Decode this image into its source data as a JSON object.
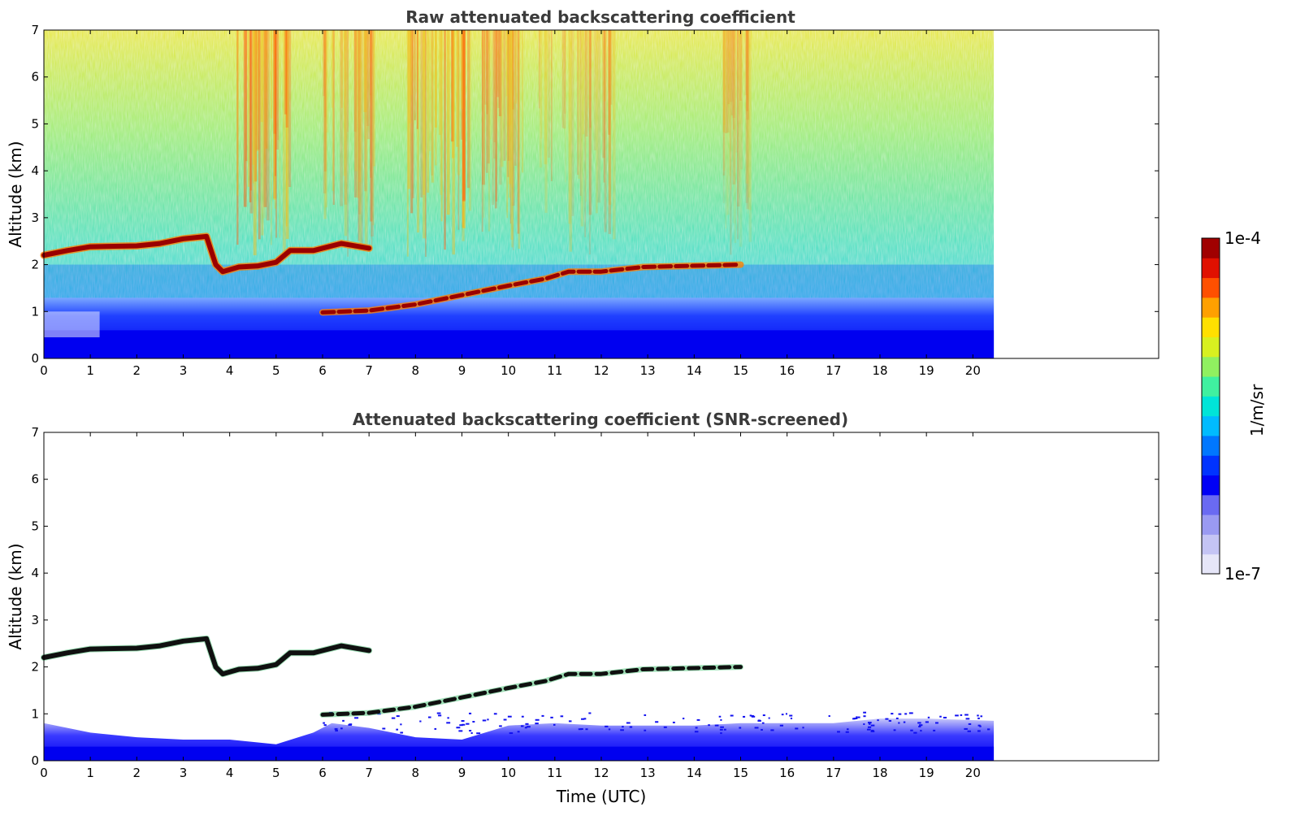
{
  "chart_data": [
    {
      "type": "heatmap",
      "title": "Raw attenuated backscattering coefficient",
      "xlabel": "",
      "ylabel": "Altitude (km)",
      "xlim": [
        0,
        24
      ],
      "ylim": [
        0,
        7
      ],
      "x_ticks": [
        0,
        1,
        2,
        3,
        4,
        5,
        6,
        7,
        8,
        9,
        10,
        11,
        12,
        13,
        14,
        15,
        16,
        17,
        18,
        19,
        20
      ],
      "y_ticks": [
        0,
        1,
        2,
        3,
        4,
        5,
        6,
        7
      ],
      "data_extent_x": [
        0,
        20.45
      ],
      "grid": false,
      "features": {
        "cloud_layer": [
          {
            "x": 0.0,
            "y": 2.2
          },
          {
            "x": 0.5,
            "y": 2.3
          },
          {
            "x": 1.0,
            "y": 2.38
          },
          {
            "x": 2.0,
            "y": 2.4
          },
          {
            "x": 2.5,
            "y": 2.45
          },
          {
            "x": 3.0,
            "y": 2.55
          },
          {
            "x": 3.5,
            "y": 2.6
          },
          {
            "x": 3.7,
            "y": 2.0
          },
          {
            "x": 3.85,
            "y": 1.85
          },
          {
            "x": 4.2,
            "y": 1.95
          },
          {
            "x": 4.6,
            "y": 1.97
          },
          {
            "x": 5.0,
            "y": 2.05
          },
          {
            "x": 5.3,
            "y": 2.3
          },
          {
            "x": 5.8,
            "y": 2.3
          },
          {
            "x": 6.4,
            "y": 2.45
          },
          {
            "x": 7.0,
            "y": 2.35
          }
        ],
        "lower_layer": [
          {
            "x": 6.0,
            "y": 0.98
          },
          {
            "x": 7.0,
            "y": 1.02
          },
          {
            "x": 8.0,
            "y": 1.15
          },
          {
            "x": 9.0,
            "y": 1.35
          },
          {
            "x": 10.0,
            "y": 1.55
          },
          {
            "x": 10.8,
            "y": 1.7
          },
          {
            "x": 11.3,
            "y": 1.85
          },
          {
            "x": 12.0,
            "y": 1.85
          },
          {
            "x": 12.9,
            "y": 1.95
          },
          {
            "x": 15.0,
            "y": 2.0
          }
        ],
        "boundary_layer_top_km": 0.6
      }
    },
    {
      "type": "heatmap",
      "title": "Attenuated backscattering coefficient (SNR-screened)",
      "xlabel": "Time (UTC)",
      "ylabel": "Altitude (km)",
      "xlim": [
        0,
        24
      ],
      "ylim": [
        0,
        7
      ],
      "x_ticks": [
        0,
        1,
        2,
        3,
        4,
        5,
        6,
        7,
        8,
        9,
        10,
        11,
        12,
        13,
        14,
        15,
        16,
        17,
        18,
        19,
        20
      ],
      "y_ticks": [
        0,
        1,
        2,
        3,
        4,
        5,
        6,
        7
      ],
      "data_extent_x": [
        0,
        20.45
      ],
      "grid": false
    }
  ],
  "colorbar": {
    "label": "1/m/sr",
    "min_label": "1e-7",
    "max_label": "1e-4",
    "colors": [
      "#e6e6f8",
      "#c4c4f4",
      "#9a9af2",
      "#6a6af2",
      "#0000f5",
      "#0033ff",
      "#0077ff",
      "#00bbff",
      "#00e4d8",
      "#40f0a0",
      "#90f060",
      "#d8f020",
      "#ffe000",
      "#ffa000",
      "#ff5000",
      "#e01000",
      "#a00000"
    ]
  }
}
